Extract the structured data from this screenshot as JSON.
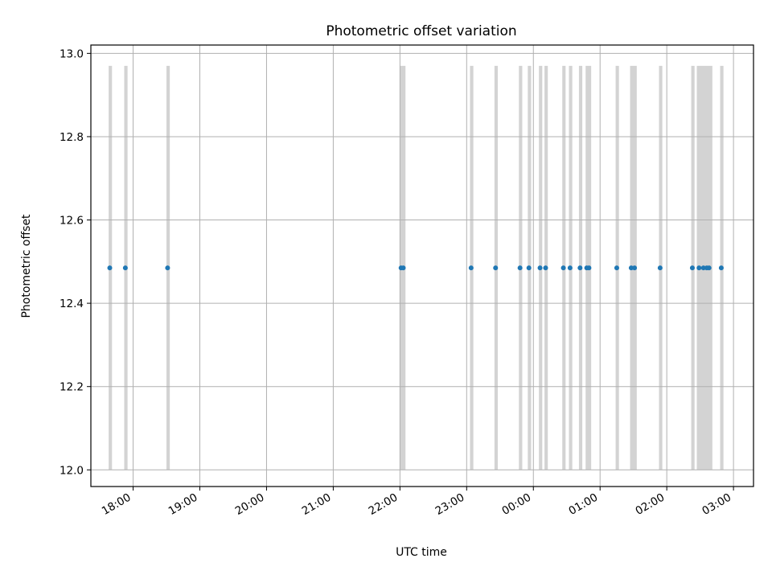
{
  "chart_data": {
    "type": "scatter",
    "title": "Photometric offset variation",
    "xlabel": "UTC time",
    "ylabel": "Photometric offset",
    "ylim": [
      11.96,
      13.02
    ],
    "xlim": [
      "17:22",
      "03:18"
    ],
    "yticks": [
      "12.0",
      "12.2",
      "12.4",
      "12.6",
      "12.8",
      "13.0"
    ],
    "xticks": [
      "18:00",
      "19:00",
      "20:00",
      "21:00",
      "22:00",
      "23:00",
      "00:00",
      "01:00",
      "02:00",
      "03:00"
    ],
    "grid": true,
    "legend": "none",
    "series": [
      {
        "color": "#1f77b4",
        "points": [
          {
            "x": "17:39",
            "y": 12.485
          },
          {
            "x": "17:53",
            "y": 12.485
          },
          {
            "x": "18:31",
            "y": 12.485
          },
          {
            "x": "22:01",
            "y": 12.485
          },
          {
            "x": "22:03",
            "y": 12.485
          },
          {
            "x": "23:04",
            "y": 12.485
          },
          {
            "x": "23:26",
            "y": 12.485
          },
          {
            "x": "23:48",
            "y": 12.485
          },
          {
            "x": "23:56",
            "y": 12.485
          },
          {
            "x": "00:06",
            "y": 12.485
          },
          {
            "x": "00:11",
            "y": 12.485
          },
          {
            "x": "00:27",
            "y": 12.485
          },
          {
            "x": "00:33",
            "y": 12.485
          },
          {
            "x": "00:42",
            "y": 12.485
          },
          {
            "x": "00:48",
            "y": 12.485
          },
          {
            "x": "00:50",
            "y": 12.485
          },
          {
            "x": "01:15",
            "y": 12.485
          },
          {
            "x": "01:28",
            "y": 12.485
          },
          {
            "x": "01:31",
            "y": 12.485
          },
          {
            "x": "01:54",
            "y": 12.485
          },
          {
            "x": "02:23",
            "y": 12.485
          },
          {
            "x": "02:29",
            "y": 12.485
          },
          {
            "x": "02:33",
            "y": 12.485
          },
          {
            "x": "02:36",
            "y": 12.485
          },
          {
            "x": "02:38",
            "y": 12.485
          },
          {
            "x": "02:49",
            "y": 12.485
          }
        ]
      }
    ],
    "bands": [
      {
        "start": "17:38",
        "end": "17:41",
        "color": "#d3d3d3",
        "y0": 12.0,
        "y1": 12.97
      },
      {
        "start": "17:52",
        "end": "17:55",
        "color": "#d3d3d3",
        "y0": 12.0,
        "y1": 12.97
      },
      {
        "start": "18:30",
        "end": "18:33",
        "color": "#d3d3d3",
        "y0": 12.0,
        "y1": 12.97
      },
      {
        "start": "22:00",
        "end": "22:05",
        "color": "#d3d3d3",
        "y0": 12.0,
        "y1": 12.97
      },
      {
        "start": "23:03",
        "end": "23:06",
        "color": "#d3d3d3",
        "y0": 12.0,
        "y1": 12.97
      },
      {
        "start": "23:25",
        "end": "23:28",
        "color": "#d3d3d3",
        "y0": 12.0,
        "y1": 12.97
      },
      {
        "start": "23:47",
        "end": "23:50",
        "color": "#d3d3d3",
        "y0": 12.0,
        "y1": 12.97
      },
      {
        "start": "23:55",
        "end": "23:58",
        "color": "#d3d3d3",
        "y0": 12.0,
        "y1": 12.97
      },
      {
        "start": "00:05",
        "end": "00:08",
        "color": "#d3d3d3",
        "y0": 12.0,
        "y1": 12.97
      },
      {
        "start": "00:10",
        "end": "00:13",
        "color": "#d3d3d3",
        "y0": 12.0,
        "y1": 12.97
      },
      {
        "start": "00:26",
        "end": "00:29",
        "color": "#d3d3d3",
        "y0": 12.0,
        "y1": 12.97
      },
      {
        "start": "00:32",
        "end": "00:35",
        "color": "#d3d3d3",
        "y0": 12.0,
        "y1": 12.97
      },
      {
        "start": "00:41",
        "end": "00:44",
        "color": "#d3d3d3",
        "y0": 12.0,
        "y1": 12.97
      },
      {
        "start": "00:47",
        "end": "00:52",
        "color": "#d3d3d3",
        "y0": 12.0,
        "y1": 12.97
      },
      {
        "start": "01:14",
        "end": "01:17",
        "color": "#d3d3d3",
        "y0": 12.0,
        "y1": 12.97
      },
      {
        "start": "01:27",
        "end": "01:33",
        "color": "#d3d3d3",
        "y0": 12.0,
        "y1": 12.97
      },
      {
        "start": "01:53",
        "end": "01:56",
        "color": "#d3d3d3",
        "y0": 12.0,
        "y1": 12.97
      },
      {
        "start": "02:22",
        "end": "02:25",
        "color": "#d3d3d3",
        "y0": 12.0,
        "y1": 12.97
      },
      {
        "start": "02:27",
        "end": "02:41",
        "color": "#d3d3d3",
        "y0": 12.0,
        "y1": 12.97
      },
      {
        "start": "02:48",
        "end": "02:51",
        "color": "#d3d3d3",
        "y0": 12.0,
        "y1": 12.97
      }
    ]
  }
}
